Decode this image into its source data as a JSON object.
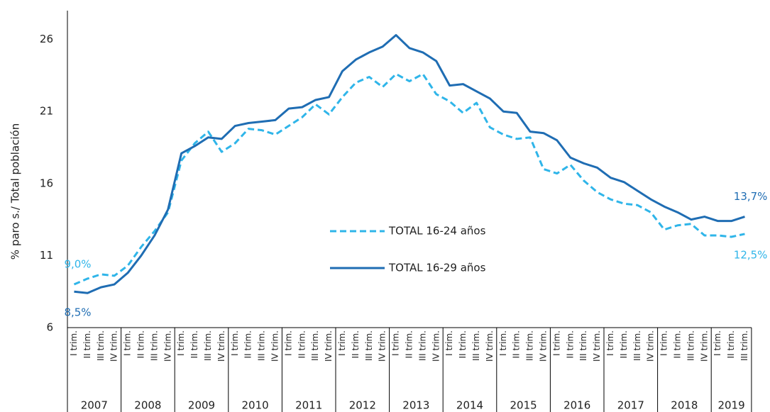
{
  "chart_data": {
    "type": "line",
    "y_label": "% paro s./ Total población",
    "categories": [
      "I trim.",
      "II trim.",
      "III trim.",
      "IV trim.",
      "I trim.",
      "II trim.",
      "III trim.",
      "IV trim.",
      "I trim.",
      "II trim.",
      "III trim.",
      "IV trim.",
      "I trim.",
      "II trim.",
      "III trim.",
      "IV trim.",
      "I trim.",
      "II trim.",
      "III trim.",
      "IV trim.",
      "I trim.",
      "II trim.",
      "III trim.",
      "IV trim.",
      "I trim.",
      "II trim.",
      "III trim.",
      "IV trim.",
      "I trim.",
      "II trim.",
      "III trim.",
      "IV trim.",
      "I trim.",
      "II trim.",
      "III trim.",
      "IV trim.",
      "I trim.",
      "II trim.",
      "III trim.",
      "IV trim.",
      "I trim.",
      "II trim.",
      "III trim.",
      "IV trim.",
      "I trim.",
      "II trim.",
      "III trim.",
      "IV trim.",
      "I trim.",
      "II trim.",
      "III trim."
    ],
    "years": [
      "2007",
      "2008",
      "2009",
      "2010",
      "2011",
      "2012",
      "2013",
      "2014",
      "2015",
      "2016",
      "2017",
      "2018",
      "2019"
    ],
    "series": [
      {
        "name": "TOTAL 16-24 años",
        "color": "#2fb5e9",
        "dash": true,
        "values": [
          9.0,
          9.4,
          9.7,
          9.6,
          10.3,
          11.6,
          12.7,
          14.0,
          17.6,
          18.8,
          19.6,
          18.2,
          18.8,
          19.8,
          19.7,
          19.4,
          20.0,
          20.6,
          21.5,
          20.8,
          22.0,
          23.0,
          23.4,
          22.7,
          23.6,
          23.1,
          23.6,
          22.2,
          21.7,
          20.9,
          21.6,
          19.9,
          19.4,
          19.1,
          19.2,
          17.0,
          16.7,
          17.3,
          16.2,
          15.4,
          14.9,
          14.6,
          14.5,
          14.0,
          12.8,
          13.1,
          13.2,
          12.4,
          12.4,
          12.3,
          12.5
        ],
        "value_labels": [
          "9,0%",
          null,
          null,
          null,
          null,
          null,
          null,
          null,
          null,
          null,
          null,
          null,
          null,
          null,
          null,
          null,
          null,
          null,
          null,
          null,
          null,
          null,
          null,
          null,
          null,
          null,
          null,
          null,
          null,
          null,
          null,
          null,
          null,
          null,
          null,
          null,
          null,
          null,
          null,
          null,
          null,
          null,
          null,
          null,
          null,
          null,
          null,
          null,
          null,
          null,
          "12,5%"
        ]
      },
      {
        "name": "TOTAL 16-29 años",
        "color": "#1f6db3",
        "dash": false,
        "values": [
          8.5,
          8.4,
          8.8,
          9.0,
          9.8,
          11.0,
          12.4,
          14.2,
          18.1,
          18.6,
          19.2,
          19.1,
          20.0,
          20.2,
          20.3,
          20.4,
          21.2,
          21.3,
          21.8,
          22.0,
          23.8,
          24.6,
          25.1,
          25.5,
          26.3,
          25.4,
          25.1,
          24.5,
          22.8,
          22.9,
          22.4,
          21.9,
          21.0,
          20.9,
          19.6,
          19.5,
          19.0,
          17.8,
          17.4,
          17.1,
          16.4,
          16.1,
          15.5,
          14.9,
          14.4,
          14.0,
          13.5,
          13.7,
          13.4,
          13.4,
          13.7
        ],
        "value_labels": [
          "8,5%",
          null,
          null,
          null,
          null,
          null,
          null,
          null,
          null,
          null,
          null,
          null,
          null,
          null,
          null,
          null,
          null,
          null,
          null,
          null,
          null,
          null,
          null,
          null,
          null,
          null,
          null,
          null,
          null,
          null,
          null,
          null,
          null,
          null,
          null,
          null,
          null,
          null,
          null,
          null,
          null,
          null,
          null,
          null,
          null,
          null,
          null,
          null,
          null,
          null,
          "13,7%"
        ]
      }
    ],
    "ylim": [
      6,
      28
    ],
    "yticks": [
      6,
      11,
      16,
      21,
      26
    ],
    "grid": false,
    "legend": "center"
  }
}
